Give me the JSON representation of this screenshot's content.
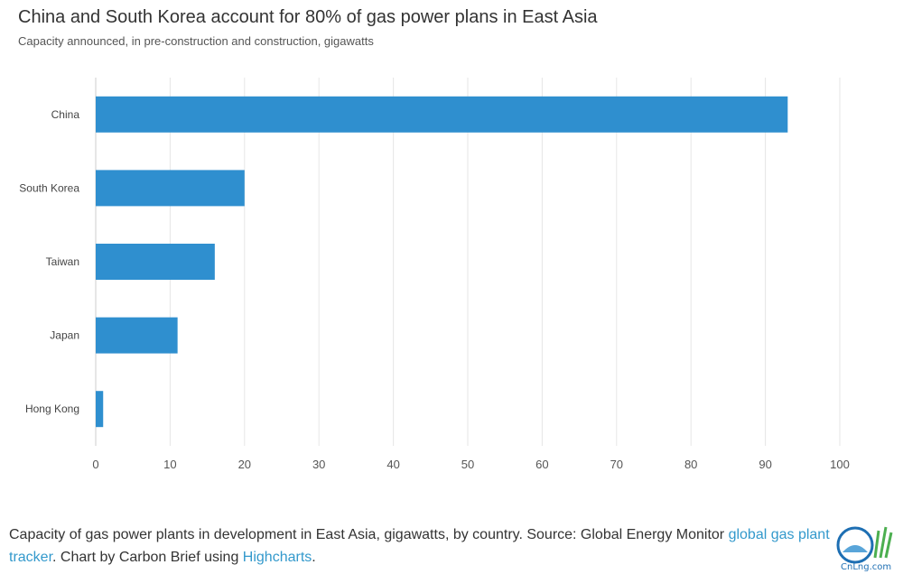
{
  "chart_data": {
    "type": "bar",
    "orientation": "horizontal",
    "title": "China and South Korea account for 80% of gas power plans in East Asia",
    "subtitle": "Capacity announced, in pre-construction and construction, gigawatts",
    "categories": [
      "China",
      "South Korea",
      "Taiwan",
      "Japan",
      "Hong Kong"
    ],
    "values": [
      93,
      20,
      16,
      11,
      1
    ],
    "xlim": [
      0,
      100
    ],
    "xticks": [
      "0",
      "10",
      "20",
      "30",
      "40",
      "50",
      "60",
      "70",
      "80",
      "90",
      "100"
    ],
    "grid": true,
    "bar_color": "#2f8fcf",
    "grid_color": "#e6e6e6"
  },
  "caption": {
    "text_before": "Capacity of gas power plants in development in East Asia, gigawatts, by country. Source: Global Energy Monitor ",
    "link1": "global gas plant tracker",
    "text_middle": ". Chart by Carbon Brief using ",
    "link2": "Highcharts",
    "text_after": "."
  },
  "watermark": {
    "text": "CnLng.com"
  }
}
